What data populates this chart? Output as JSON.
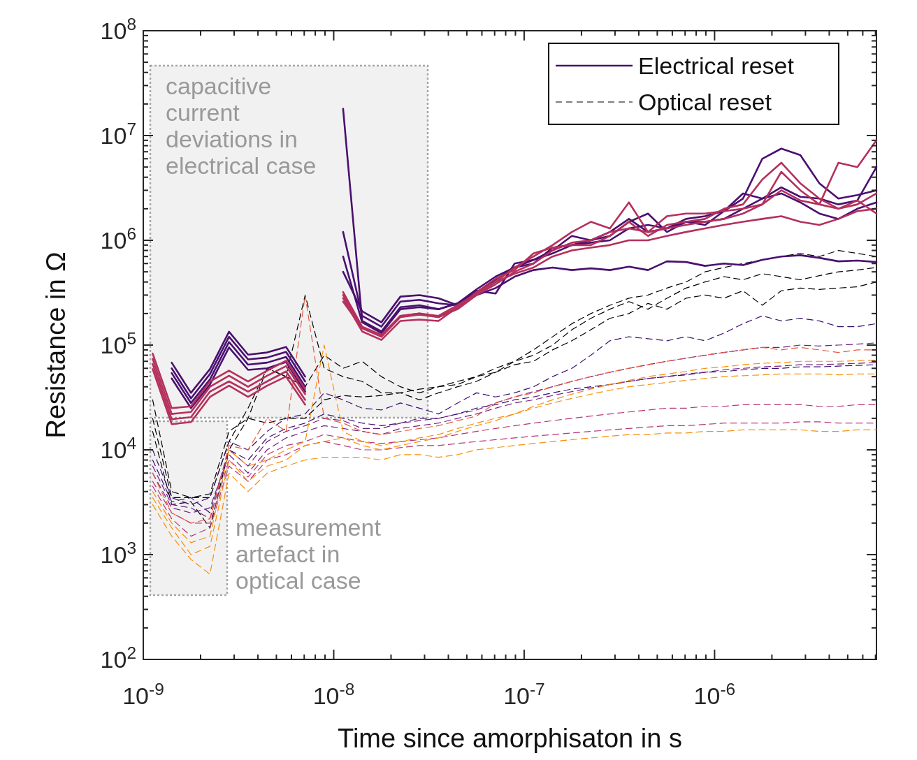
{
  "chart_data": {
    "type": "line",
    "xlabel": "Time since amorphisaton in s",
    "ylabel": "Resistance in Ω",
    "log": "xy",
    "grid": false,
    "marker": "none",
    "legend": "top right",
    "xlim": [
      1e-09,
      7.08e-06
    ],
    "xticks": [
      {
        "value": 1e-09,
        "label": "10$^{-9}$"
      },
      {
        "value": 1e-08,
        "label": "10$^{-8}$"
      },
      {
        "value": 1e-07,
        "label": "10$^{-7}$"
      },
      {
        "value": 1e-06,
        "label": "10$^{-6}$"
      }
    ],
    "ylim": [
      100,
      100000000
    ],
    "yticks": [
      {
        "value": 100,
        "label": "10$^{2}$"
      },
      {
        "value": 1000,
        "label": "10$^{3}$"
      },
      {
        "value": 10000,
        "label": "10$^{4}$"
      },
      {
        "value": 100000,
        "label": "10$^{5}$"
      },
      {
        "value": 1000000,
        "label": "10$^{6}$"
      },
      {
        "value": 10000000,
        "label": "10$^{7}$"
      },
      {
        "value": 100000000,
        "label": "10$^{8}$"
      }
    ],
    "x": [
      1.12e-09,
      1.41e-09,
      1.78e-09,
      2.24e-09,
      2.82e-09,
      3.55e-09,
      4.47e-09,
      5.62e-09,
      7.08e-09,
      8.91e-09,
      1.12e-08,
      1.41e-08,
      1.78e-08,
      2.24e-08,
      2.82e-08,
      3.55e-08,
      4.47e-08,
      5.62e-08,
      7.08e-08,
      8.91e-08,
      1.12e-07,
      1.41e-07,
      1.78e-07,
      2.24e-07,
      2.82e-07,
      3.55e-07,
      4.47e-07,
      5.62e-07,
      7.08e-07,
      8.91e-07,
      1.12e-06,
      1.41e-06,
      1.78e-06,
      2.24e-06,
      2.82e-06,
      3.55e-06,
      4.47e-06,
      5.62e-06,
      7.08e-06
    ],
    "annotations": [
      "capacitive\ncurrent\ndeviations in\nelectrical case",
      "measurement\nartefact in\noptical case"
    ],
    "series": [
      {
        "name": "Electrical reset",
        "color": "#4a1070",
        "line_style": "solid",
        "values": [
          null,
          54000.0,
          28000.0,
          47000.0,
          107000.0,
          65000.0,
          68000.0,
          77000.0,
          40000.0,
          null,
          18000000.0,
          170000.0,
          135000.0,
          230000.0,
          240000.0,
          220000.0,
          250000.0,
          320000.0,
          420000.0,
          550000.0,
          650000.0,
          750000.0,
          900000.0,
          950000.0,
          1000000.0,
          1300000.0,
          1400000.0,
          1300000.0,
          1600000.0,
          1700000.0,
          1900000.0,
          2500000.0,
          6000000.0,
          7500000.0,
          6500000.0,
          3500000.0,
          2500000.0,
          2700000.0,
          3000000.0
        ]
      },
      {
        "color": "#4a1070",
        "line_style": "solid",
        "values": [
          null,
          60000.0,
          31000.0,
          53000.0,
          120000.0,
          73000.0,
          76000.0,
          86000.0,
          45000.0,
          null,
          1200000.0,
          190000.0,
          150000.0,
          260000.0,
          270000.0,
          250000.0,
          240000.0,
          330000.0,
          310000.0,
          600000.0,
          650000.0,
          800000.0,
          1100000.0,
          1000000.0,
          1100000.0,
          1500000.0,
          1800000.0,
          1200000.0,
          1500000.0,
          1400000.0,
          1900000.0,
          2800000.0,
          2500000.0,
          3200000.0,
          2600000.0,
          2500000.0,
          2200000.0,
          2400000.0,
          5000000.0
        ]
      },
      {
        "color": "#4a1070",
        "line_style": "solid",
        "values": [
          null,
          48000.0,
          25000.0,
          42000.0,
          95000.0,
          58000.0,
          60000.0,
          69000.0,
          36000.0,
          null,
          700000.0,
          165000.0,
          130000.0,
          220000.0,
          230000.0,
          220000.0,
          250000.0,
          340000.0,
          450000.0,
          550000.0,
          600000.0,
          850000.0,
          900000.0,
          1000000.0,
          1200000.0,
          1600000.0,
          1200000.0,
          1300000.0,
          1500000.0,
          1500000.0,
          1600000.0,
          2000000.0,
          2500000.0,
          2800000.0,
          2300000.0,
          1800000.0,
          1600000.0,
          2000000.0,
          2300000.0
        ]
      },
      {
        "color": "#4a1070",
        "line_style": "solid",
        "values": [
          null,
          68000.0,
          35000.0,
          59000.0,
          134000.0,
          81000.0,
          85000.0,
          96000.0,
          50000.0,
          null,
          500000.0,
          210000.0,
          165000.0,
          290000.0,
          300000.0,
          280000.0,
          240000.0,
          300000.0,
          350000.0,
          450000.0,
          520000.0,
          550000.0,
          520000.0,
          540000.0,
          520000.0,
          560000.0,
          520000.0,
          630000.0,
          620000.0,
          570000.0,
          600000.0,
          580000.0,
          650000.0,
          700000.0,
          720000.0,
          680000.0,
          630000.0,
          640000.0,
          620000.0
        ]
      },
      {
        "color": "#b5305c",
        "line_style": "solid",
        "values": [
          74000.0,
          22000.0,
          23000.0,
          40000.0,
          51000.0,
          40000.0,
          51000.0,
          63000.0,
          34000.0,
          null,
          320000.0,
          150000.0,
          125000.0,
          190000.0,
          200000.0,
          190000.0,
          240000.0,
          310000.0,
          400000.0,
          550000.0,
          700000.0,
          900000.0,
          1200000.0,
          1500000.0,
          1300000.0,
          2300000.0,
          1200000.0,
          1700000.0,
          1800000.0,
          1800000.0,
          1900000.0,
          2000000.0,
          2200000.0,
          3000000.0,
          2400000.0,
          2200000.0,
          5500000.0,
          5000000.0,
          9000000.0
        ]
      },
      {
        "color": "#b5305c",
        "line_style": "solid",
        "values": [
          66000.0,
          19600.0,
          20500.0,
          36000.0,
          45000.0,
          36000.0,
          45000.0,
          56000.0,
          30000.0,
          null,
          280000.0,
          135000.0,
          112000.0,
          170000.0,
          175000.0,
          170000.0,
          230000.0,
          320000.0,
          430000.0,
          520000.0,
          750000.0,
          850000.0,
          900000.0,
          900000.0,
          1100000.0,
          1500000.0,
          1100000.0,
          1400000.0,
          1500000.0,
          1600000.0,
          2000000.0,
          2200000.0,
          3800000.0,
          5500000.0,
          3500000.0,
          2500000.0,
          2000000.0,
          2400000.0,
          1800000.0
        ]
      },
      {
        "color": "#b5305c",
        "line_style": "solid",
        "values": [
          83000.0,
          25000.0,
          26000.0,
          45000.0,
          57000.0,
          45000.0,
          57000.0,
          71000.0,
          38000.0,
          null,
          300000.0,
          145000.0,
          120000.0,
          185000.0,
          195000.0,
          185000.0,
          220000.0,
          300000.0,
          380000.0,
          500000.0,
          600000.0,
          800000.0,
          950000.0,
          1000000.0,
          1200000.0,
          1300000.0,
          1200000.0,
          1300000.0,
          1400000.0,
          1500000.0,
          1600000.0,
          1800000.0,
          2200000.0,
          4500000.0,
          3000000.0,
          2200000.0,
          2000000.0,
          2200000.0,
          2800000.0
        ]
      },
      {
        "color": "#b5305c",
        "line_style": "solid",
        "values": [
          59000.0,
          17600.0,
          18400.0,
          32000.0,
          41000.0,
          32000.0,
          41000.0,
          50000.0,
          27000.0,
          null,
          260000.0,
          145000.0,
          122000.0,
          190000.0,
          200000.0,
          185000.0,
          230000.0,
          300000.0,
          400000.0,
          480000.0,
          550000.0,
          700000.0,
          800000.0,
          850000.0,
          900000.0,
          1000000.0,
          1000000.0,
          1100000.0,
          1200000.0,
          1300000.0,
          1400000.0,
          1500000.0,
          1600000.0,
          1700000.0,
          1500000.0,
          1400000.0,
          1600000.0,
          1900000.0,
          2000000.0
        ]
      },
      {
        "name": "Optical reset",
        "color": "#000000",
        "line_style": "dashed",
        "values": [
          30000.0,
          4000.0,
          3500.0,
          3500.0,
          12000.0,
          25000.0,
          60000.0,
          50000.0,
          40000.0,
          80000.0,
          60000.0,
          70000.0,
          50000.0,
          40000.0,
          35000.0,
          40000.0,
          45000.0,
          50000.0,
          60000.0,
          70000.0,
          90000.0,
          120000.0,
          160000.0,
          200000.0,
          240000.0,
          280000.0,
          300000.0,
          350000.0,
          400000.0,
          500000.0,
          550000.0,
          600000.0,
          650000.0,
          700000.0,
          750000.0,
          700000.0,
          800000.0,
          750000.0,
          700000.0
        ]
      },
      {
        "color": "#000000",
        "line_style": "dashed",
        "values": [
          20000.0,
          3500.0,
          3500.0,
          3800.0,
          15000.0,
          20000.0,
          18000.0,
          20000.0,
          20000.0,
          30000.0,
          33000.0,
          32000.0,
          33000.0,
          35000.0,
          38000.0,
          40000.0,
          42000.0,
          50000.0,
          55000.0,
          70000.0,
          80000.0,
          100000.0,
          140000.0,
          180000.0,
          220000.0,
          260000.0,
          220000.0,
          280000.0,
          350000.0,
          400000.0,
          450000.0,
          420000.0,
          480000.0,
          450000.0,
          420000.0,
          460000.0,
          500000.0,
          520000.0,
          550000.0
        ]
      },
      {
        "color": "#000000",
        "line_style": "dashed",
        "values": [
          15000.0,
          3000.0,
          3200.0,
          1800.0,
          10000.0,
          20000.0,
          60000.0,
          50000.0,
          300000.0,
          60000.0,
          50000.0,
          45000.0,
          35000.0,
          35000.0,
          30000.0,
          35000.0,
          40000.0,
          45000.0,
          55000.0,
          65000.0,
          70000.0,
          90000.0,
          110000.0,
          140000.0,
          180000.0,
          200000.0,
          250000.0,
          220000.0,
          280000.0,
          300000.0,
          280000.0,
          330000.0,
          240000.0,
          330000.0,
          350000.0,
          340000.0,
          350000.0,
          360000.0,
          400000.0
        ]
      },
      {
        "color": "#3b0f70",
        "line_style": "dashed",
        "values": [
          10000.0,
          3500.0,
          3000.0,
          3500.0,
          12000.0,
          10000.0,
          15000.0,
          20000.0,
          22000.0,
          35000.0,
          30000.0,
          25000.0,
          24000.0,
          28000.0,
          25000.0,
          22000.0,
          28000.0,
          35000.0,
          32000.0,
          35000.0,
          40000.0,
          50000.0,
          60000.0,
          80000.0,
          110000.0,
          120000.0,
          115000.0,
          110000.0,
          120000.0,
          110000.0,
          130000.0,
          160000.0,
          190000.0,
          170000.0,
          180000.0,
          170000.0,
          150000.0,
          150000.0,
          160000.0
        ]
      },
      {
        "color": "#3b0f70",
        "line_style": "dashed",
        "values": [
          8000.0,
          3200.0,
          3500.0,
          2500.0,
          10000.0,
          8000.0,
          13000.0,
          16000.0,
          18000.0,
          22000.0,
          20000.0,
          18000.0,
          17000.0,
          18000.0,
          20000.0,
          20000.0,
          22000.0,
          25000.0,
          27000.0,
          30000.0,
          32000.0,
          35000.0,
          38000.0,
          40000.0,
          42000.0,
          45000.0,
          48000.0,
          50000.0,
          52000.0,
          55000.0,
          56000.0,
          58000.0,
          60000.0,
          60000.0,
          62000.0,
          62000.0,
          63000.0,
          64000.0,
          65000.0
        ]
      },
      {
        "color": "#721f81",
        "line_style": "dashed",
        "values": [
          7000.0,
          3000.0,
          2800.0,
          2200.0,
          10000.0,
          7000.0,
          12000.0,
          15000.0,
          17000.0,
          20000.0,
          19000.0,
          16000.0,
          16000.0,
          18000.0,
          19000.0,
          20000.0,
          22000.0,
          24000.0,
          28000.0,
          32000.0,
          36000.0,
          40000.0,
          45000.0,
          50000.0,
          55000.0,
          60000.0,
          65000.0,
          70000.0,
          75000.0,
          80000.0,
          85000.0,
          90000.0,
          95000.0,
          95000.0,
          100000.0,
          98000.0,
          100000.0,
          102000.0,
          105000.0
        ]
      },
      {
        "color": "#721f81",
        "line_style": "dashed",
        "values": [
          6000.0,
          2800.0,
          2500.0,
          2800.0,
          9000.0,
          6000.0,
          10000.0,
          13000.0,
          15000.0,
          17000.0,
          16000.0,
          15000.0,
          14000.0,
          16000.0,
          17000.0,
          18000.0,
          20000.0,
          22000.0,
          25000.0,
          28000.0,
          30000.0,
          33000.0,
          36000.0,
          39000.0,
          42000.0,
          45000.0,
          48000.0,
          50000.0,
          53000.0,
          55000.0,
          58000.0,
          60000.0,
          62000.0,
          63000.0,
          65000.0,
          65000.0,
          66000.0,
          67000.0,
          68000.0
        ]
      },
      {
        "color": "#b73779",
        "line_style": "dashed",
        "values": [
          5000.0,
          2500.0,
          2000.0,
          2000.0,
          8000.0,
          5500.0,
          9000.0,
          11000.0,
          12000.0,
          14000.0,
          13000.0,
          12000.0,
          11500.0,
          12000.0,
          12500.0,
          13000.0,
          14000.0,
          15000.0,
          16000.0,
          17000.0,
          18000.0,
          19000.0,
          20000.0,
          21000.0,
          22000.0,
          23000.0,
          24000.0,
          25000.0,
          25000.0,
          26000.0,
          26000.0,
          27000.0,
          27000.0,
          27000.0,
          27000.0,
          26000.0,
          26000.0,
          27000.0,
          27000.0
        ]
      },
      {
        "color": "#b73779",
        "line_style": "dashed",
        "values": [
          4500.0,
          2200.0,
          1500.0,
          1800.0,
          7000.0,
          5000.0,
          8000.0,
          9000.0,
          11000.0,
          12000.0,
          11000.0,
          10000.0,
          10000.0,
          10500.0,
          11000.0,
          11000.0,
          11500.0,
          12000.0,
          12500.0,
          13000.0,
          13500.0,
          14000.0,
          14500.0,
          15000.0,
          15500.0,
          16000.0,
          16500.0,
          17000.0,
          17000.0,
          17500.0,
          18000.0,
          18000.0,
          18000.0,
          18000.0,
          18500.0,
          18500.0,
          18000.0,
          18000.0,
          18000.0
        ]
      },
      {
        "color": "#e8593d",
        "line_style": "dashed",
        "values": [
          6000.0,
          2500.0,
          2000.0,
          2200.0,
          11000.0,
          10000.0,
          20000.0,
          15000.0,
          300000.0,
          20000.0,
          18000.0,
          15000.0,
          14000.0,
          15000.0,
          16000.0,
          17000.0,
          19000.0,
          21000.0,
          28000.0,
          32000.0,
          35000.0,
          40000.0,
          45000.0,
          50000.0,
          55000.0,
          60000.0,
          65000.0,
          70000.0,
          75000.0,
          80000.0,
          85000.0,
          90000.0,
          95000.0,
          90000.0,
          95000.0,
          90000.0,
          85000.0,
          90000.0,
          90000.0
        ]
      },
      {
        "color": "#f98e09",
        "line_style": "dashed",
        "values": [
          4000.0,
          2000.0,
          1300.0,
          1500.0,
          10000.0,
          7000.0,
          8000.0,
          10000.0,
          12000.0,
          100000.0,
          15000.0,
          12000.0,
          11000.0,
          12000.0,
          13000.0,
          14000.0,
          16000.0,
          18000.0,
          20000.0,
          22000.0,
          26000.0,
          30000.0,
          34000.0,
          38000.0,
          42000.0,
          46000.0,
          50000.0,
          53000.0,
          56000.0,
          60000.0,
          62000.0,
          65000.0,
          67000.0,
          68000.0,
          70000.0,
          70000.0,
          70000.0,
          71000.0,
          72000.0
        ]
      },
      {
        "color": "#f98e09",
        "line_style": "dashed",
        "values": [
          3500.0,
          1800.0,
          1000.0,
          1200.0,
          8000.0,
          5000.0,
          7000.0,
          8000.0,
          11000.0,
          12000.0,
          13000.0,
          11000.0,
          10000.0,
          11000.0,
          12000.0,
          13000.0,
          15000.0,
          17000.0,
          19000.0,
          22000.0,
          25000.0,
          28000.0,
          31000.0,
          34000.0,
          37000.0,
          40000.0,
          42000.0,
          44000.0,
          46000.0,
          48000.0,
          50000.0,
          51000.0,
          52000.0,
          53000.0,
          53000.0,
          53000.0,
          52000.0,
          53000.0,
          53000.0
        ]
      },
      {
        "color": "#f98e09",
        "line_style": "dashed",
        "values": [
          3000.0,
          1500.0,
          900.0,
          650.0,
          6000.0,
          4000.0,
          6000.0,
          7000.0,
          8000.0,
          8500.0,
          8500.0,
          8500.0,
          8000.0,
          9000.0,
          9000.0,
          8500.0,
          9000.0,
          10000.0,
          10500.0,
          11000.0,
          11500.0,
          12000.0,
          12500.0,
          13000.0,
          13500.0,
          14000.0,
          14000.0,
          14500.0,
          14500.0,
          15000.0,
          15000.0,
          15500.0,
          15500.0,
          15500.0,
          15500.0,
          15000.0,
          15000.0,
          15500.0,
          15500.0
        ]
      }
    ]
  }
}
